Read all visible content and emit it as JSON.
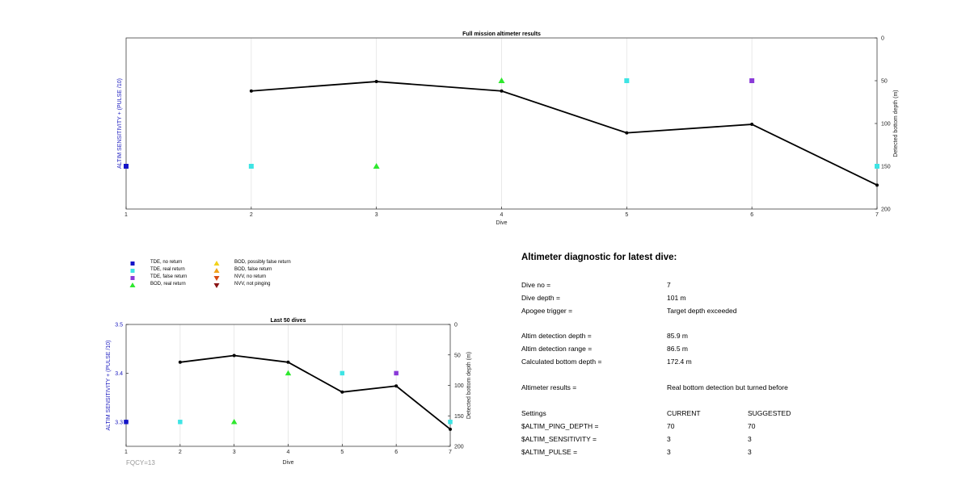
{
  "colors": {
    "tde_no_return": "#1414c8",
    "tde_real_return": "#3ee4e4",
    "tde_false_return": "#8a3ad8",
    "bod_real_return": "#2ee82e",
    "bod_possibly_false": "#f2d21a",
    "bod_false": "#f0a21a",
    "nvv_no_return": "#d84a14",
    "nvv_not_pinging": "#8a1414",
    "depth_line": "#000000",
    "left_axis_label": "#2020c0"
  },
  "chart_data": [
    {
      "type": "scatter",
      "title": "Full mission altimeter results",
      "xlabel": "Dive",
      "ylabel_left": "ALTIM SENSITIVITY + (PULSE /10)",
      "ylabel_right": "Detected bottom depth (m)",
      "x_ticks": [
        1,
        2,
        3,
        4,
        5,
        6,
        7
      ],
      "x_tick_labels": [
        "1",
        "2",
        "3",
        "4",
        "5",
        "6",
        "7"
      ],
      "xlim": [
        1,
        7
      ],
      "y_right_ticks": [
        0,
        50,
        100,
        150,
        200
      ],
      "y_right_tick_labels": [
        "0",
        "50",
        "100",
        "150",
        "200"
      ],
      "ylim_right": [
        0,
        200
      ],
      "y_right_reversed": true,
      "grid": "vertical",
      "series": [
        {
          "name": "Detected bottom depth",
          "kind": "line",
          "axis": "right",
          "x": [
            2,
            3,
            4,
            5,
            6,
            7
          ],
          "y": [
            62,
            51,
            62,
            111,
            101,
            172
          ]
        },
        {
          "name": "TDE, no return",
          "kind": "square",
          "axis": "right",
          "color_key": "tde_no_return",
          "x": [
            1
          ],
          "y": [
            150
          ]
        },
        {
          "name": "TDE, real return",
          "kind": "square",
          "axis": "right",
          "color_key": "tde_real_return",
          "x": [
            2,
            5,
            7
          ],
          "y": [
            150,
            50,
            150
          ]
        },
        {
          "name": "TDE, false return",
          "kind": "square",
          "axis": "right",
          "color_key": "tde_false_return",
          "x": [
            6
          ],
          "y": [
            50
          ]
        },
        {
          "name": "BOD, real return",
          "kind": "triangle-up",
          "axis": "right",
          "color_key": "bod_real_return",
          "x": [
            3,
            4
          ],
          "y": [
            150,
            50
          ]
        }
      ]
    },
    {
      "type": "scatter",
      "title": "Last 50 dives",
      "xlabel": "Dive",
      "ylabel_left": "ALTIM SENSITIVITY + (PULSE /10)",
      "ylabel_right": "Detected bottom depth (m)",
      "x_ticks": [
        1,
        2,
        3,
        4,
        5,
        6,
        7
      ],
      "x_tick_labels": [
        "1",
        "2",
        "3",
        "4",
        "5",
        "6",
        "7"
      ],
      "xlim": [
        1,
        7
      ],
      "y_left_ticks": [
        3.3,
        3.4,
        3.5
      ],
      "y_left_tick_labels": [
        "3.3",
        "3.4",
        "3.5"
      ],
      "ylim_left": [
        3.25,
        3.5
      ],
      "y_right_ticks": [
        0,
        50,
        100,
        150,
        200
      ],
      "y_right_tick_labels": [
        "0",
        "50",
        "100",
        "150",
        "200"
      ],
      "ylim_right": [
        0,
        200
      ],
      "y_right_reversed": true,
      "grid": "vertical",
      "series": [
        {
          "name": "Detected bottom depth",
          "kind": "line",
          "axis": "right",
          "x": [
            2,
            3,
            4,
            5,
            6,
            7
          ],
          "y": [
            62,
            51,
            62,
            111,
            101,
            172
          ]
        },
        {
          "name": "TDE, no return",
          "kind": "square",
          "axis": "left",
          "color_key": "tde_no_return",
          "x": [
            1
          ],
          "y": [
            3.3
          ]
        },
        {
          "name": "TDE, real return",
          "kind": "square",
          "axis": "left",
          "color_key": "tde_real_return",
          "x": [
            2,
            5,
            7
          ],
          "y": [
            3.3,
            3.4,
            3.3
          ]
        },
        {
          "name": "TDE, false return",
          "kind": "square",
          "axis": "left",
          "color_key": "tde_false_return",
          "x": [
            6
          ],
          "y": [
            3.4
          ]
        },
        {
          "name": "BOD, real return",
          "kind": "triangle-up",
          "axis": "left",
          "color_key": "bod_real_return",
          "x": [
            3,
            4
          ],
          "y": [
            3.3,
            3.4
          ]
        }
      ]
    }
  ],
  "legend": [
    {
      "label": "TDE, no return",
      "symbol": "square",
      "color_key": "tde_no_return"
    },
    {
      "label": "TDE, real return",
      "symbol": "square",
      "color_key": "tde_real_return"
    },
    {
      "label": "TDE, false return",
      "symbol": "square",
      "color_key": "tde_false_return"
    },
    {
      "label": "BOD, real return",
      "symbol": "triangle-up",
      "color_key": "bod_real_return"
    },
    {
      "label": "BOD, possibly false return",
      "symbol": "triangle-up",
      "color_key": "bod_possibly_false"
    },
    {
      "label": "BOD, false return",
      "symbol": "triangle-up",
      "color_key": "bod_false"
    },
    {
      "label": "NVV, no return",
      "symbol": "triangle-down",
      "color_key": "nvv_no_return"
    },
    {
      "label": "NVV, not pinging",
      "symbol": "triangle-down",
      "color_key": "nvv_not_pinging"
    }
  ],
  "fqcy": "FQCY=13",
  "diagnostic": {
    "title": "Altimeter diagnostic for latest dive:",
    "rows": [
      {
        "c1": "Dive no =",
        "c2": "7",
        "c3": ""
      },
      {
        "c1": "Dive depth =",
        "c2": "101 m",
        "c3": ""
      },
      {
        "c1": "Apogee trigger =",
        "c2": "Target depth exceeded",
        "c3": ""
      },
      {
        "c1": "Altim detection depth =",
        "c2": "85.9 m",
        "c3": ""
      },
      {
        "c1": "Altim detection range =",
        "c2": "86.5 m",
        "c3": ""
      },
      {
        "c1": "Calculated bottom depth =",
        "c2": "172.4 m",
        "c3": ""
      },
      {
        "c1": "Altimeter results =",
        "c2": "Real bottom detection but turned before",
        "c3": ""
      },
      {
        "c1": "Settings",
        "c2": "CURRENT",
        "c3": "SUGGESTED"
      },
      {
        "c1": "$ALTIM_PING_DEPTH =",
        "c2": "70",
        "c3": "70"
      },
      {
        "c1": "$ALTIM_SENSITIVITY =",
        "c2": "3",
        "c3": "3"
      },
      {
        "c1": "$ALTIM_PULSE =",
        "c2": "3",
        "c3": "3"
      }
    ]
  }
}
